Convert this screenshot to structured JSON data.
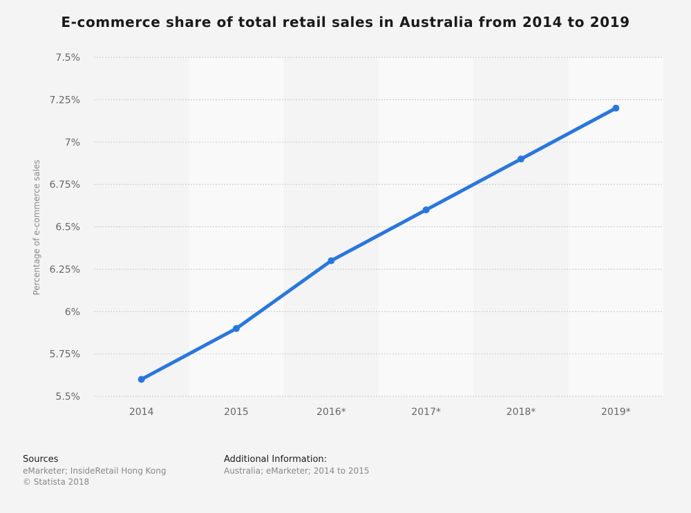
{
  "title": "E-commerce share of total retail sales in Australia from 2014 to 2019",
  "chart_data": {
    "type": "line",
    "title": "E-commerce share of total retail sales in Australia from 2014 to 2019",
    "xlabel": "",
    "ylabel": "Percentage of e-commerce sales",
    "categories": [
      "2014",
      "2015",
      "2016*",
      "2017*",
      "2018*",
      "2019*"
    ],
    "series": [
      {
        "values": [
          5.6,
          5.9,
          6.3,
          6.6,
          6.9,
          7.2
        ]
      }
    ],
    "ylim": [
      5.5,
      7.5
    ],
    "yticks": [
      5.5,
      5.75,
      6,
      6.25,
      6.5,
      6.75,
      7,
      7.25,
      7.5
    ],
    "ytick_labels": [
      "5.5%",
      "5.75%",
      "6%",
      "6.25%",
      "6.5%",
      "6.75%",
      "7%",
      "7.25%",
      "7.5%"
    ],
    "grid": true,
    "legend": "none",
    "line_color": "#2a76dd"
  },
  "footer": {
    "sources_heading": "Sources",
    "sources_lines": [
      "eMarketer; InsideRetail Hong Kong",
      "© Statista 2018"
    ],
    "additional_heading": "Additional Information:",
    "additional_lines": [
      "Australia; eMarketer; 2014 to 2015"
    ]
  }
}
